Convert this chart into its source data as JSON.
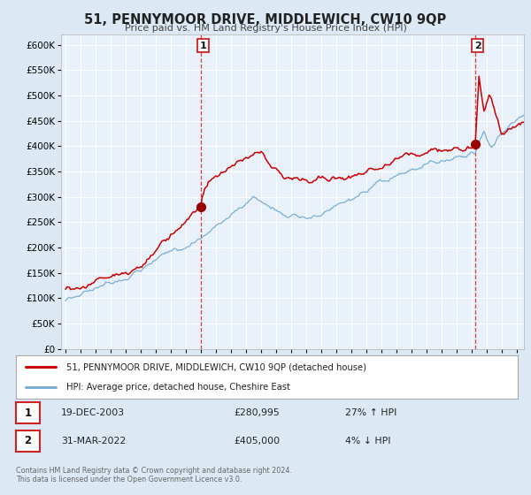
{
  "title": "51, PENNYMOOR DRIVE, MIDDLEWICH, CW10 9QP",
  "subtitle": "Price paid vs. HM Land Registry's House Price Index (HPI)",
  "bg_color": "#dce9f5",
  "plot_bg_color": "#e8f0f9",
  "grid_color": "#ffffff",
  "red_line_color": "#cc0000",
  "blue_line_color": "#7ab0d4",
  "sale1_date_decimal": 2003.97,
  "sale1_price": 280995,
  "sale2_date_decimal": 2022.25,
  "sale2_price": 405000,
  "legend_entry1": "51, PENNYMOOR DRIVE, MIDDLEWICH, CW10 9QP (detached house)",
  "legend_entry2": "HPI: Average price, detached house, Cheshire East",
  "table_row1": [
    "1",
    "19-DEC-2003",
    "£280,995",
    "27% ↑ HPI"
  ],
  "table_row2": [
    "2",
    "31-MAR-2022",
    "£405,000",
    "4% ↓ HPI"
  ],
  "footer1": "Contains HM Land Registry data © Crown copyright and database right 2024.",
  "footer2": "This data is licensed under the Open Government Licence v3.0.",
  "ylim": [
    0,
    620000
  ],
  "ytick_vals": [
    0,
    50000,
    100000,
    150000,
    200000,
    250000,
    300000,
    350000,
    400000,
    450000,
    500000,
    550000,
    600000
  ],
  "ytick_labels": [
    "£0",
    "£50K",
    "£100K",
    "£150K",
    "£200K",
    "£250K",
    "£300K",
    "£350K",
    "£400K",
    "£450K",
    "£500K",
    "£550K",
    "£600K"
  ],
  "xmin": 1994.7,
  "xmax": 2025.5
}
